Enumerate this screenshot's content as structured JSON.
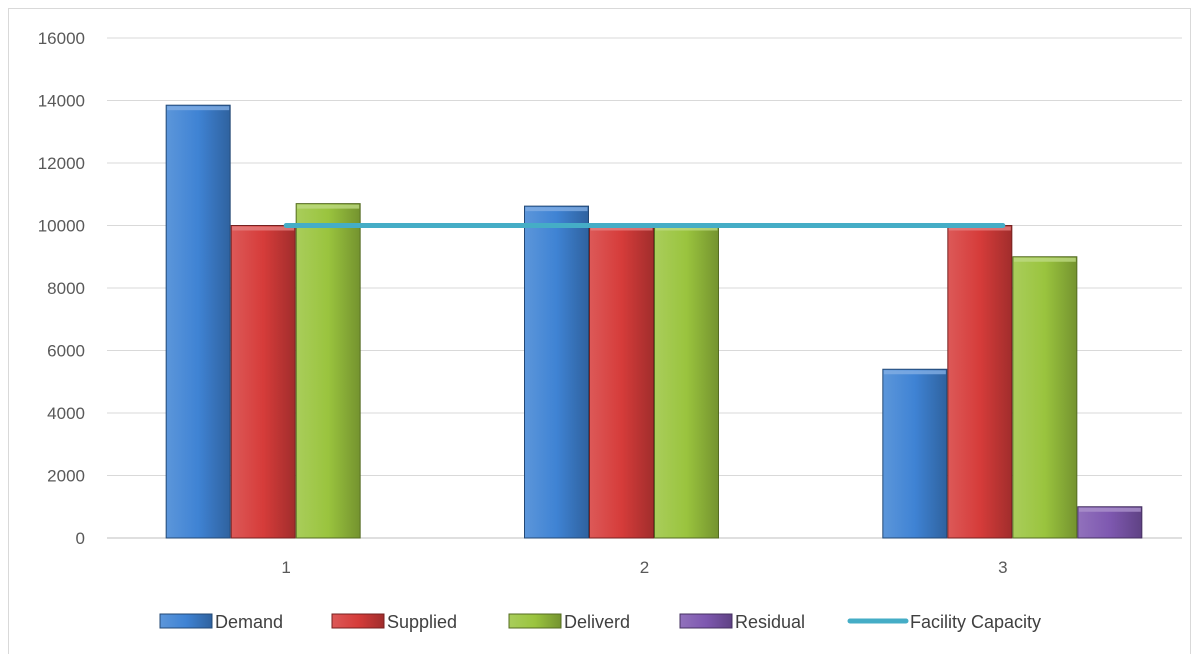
{
  "chart_data": {
    "type": "bar",
    "categories": [
      "1",
      "2",
      "3"
    ],
    "series": [
      {
        "name": "Demand",
        "type": "bar",
        "values": [
          13850,
          10620,
          5400
        ],
        "color": "#3f83d4"
      },
      {
        "name": "Supplied",
        "type": "bar",
        "values": [
          10000,
          10000,
          10000
        ],
        "color": "#d63c3a"
      },
      {
        "name": "Deliverd",
        "type": "bar",
        "values": [
          10700,
          10000,
          9000
        ],
        "color": "#9ac43e"
      },
      {
        "name": "Residual",
        "type": "bar",
        "values": [
          0,
          0,
          1000
        ],
        "color": "#7e58b0"
      },
      {
        "name": "Facility Capacity",
        "type": "line",
        "values": [
          10000,
          10000,
          10000
        ],
        "color": "#45adc6"
      }
    ],
    "ylim": [
      0,
      16000
    ],
    "yticks": [
      0,
      2000,
      4000,
      6000,
      8000,
      10000,
      12000,
      14000,
      16000
    ],
    "grid": true,
    "legend_position": "bottom",
    "title": "",
    "xlabel": "",
    "ylabel": ""
  }
}
